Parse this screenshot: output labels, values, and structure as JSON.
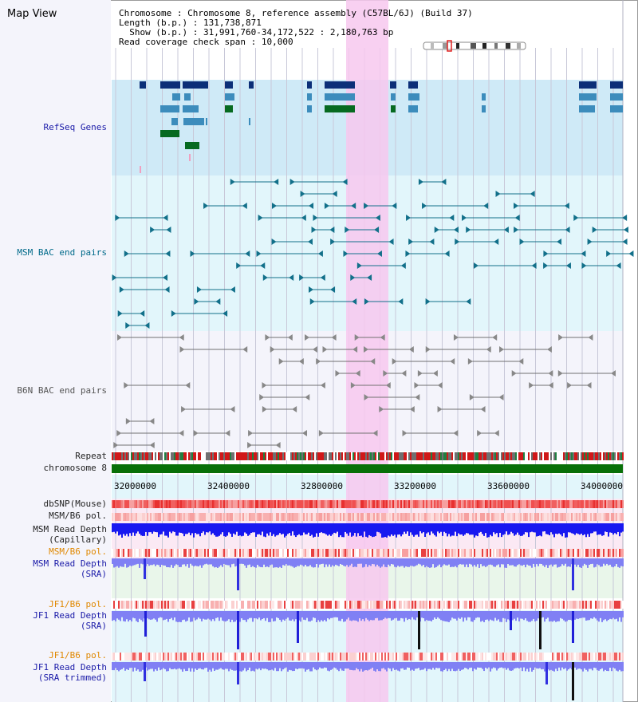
{
  "title": "Map View",
  "info": {
    "chromosome_label": "Chromosome",
    "chromosome_value": "Chromosome 8, reference assembly (C57BL/6J) (Build 37)",
    "length_label": "Length (b.p.)",
    "length_value": "131,738,871",
    "show_label": "Show (b.p.)",
    "show_value": "31,991,760-34,172,522 : 2,180,763 bp",
    "coverage_label": "Read coverage check span",
    "coverage_value": "10,000"
  },
  "tracks": {
    "refseq": "RefSeq Genes",
    "msm_bac": "MSM BAC end pairs",
    "b6n_bac": "B6N BAC end pairs",
    "repeat": "Repeat",
    "chromosome": "chromosome 8",
    "dbsnp": "dbSNP(Mouse)",
    "msm_b6_pol_1": "MSM/B6 pol.",
    "msm_read_depth_cap_1": "MSM Read Depth",
    "msm_read_depth_cap_2": "(Capillary)",
    "msm_b6_pol_2": "MSM/B6 pol.",
    "msm_read_depth_sra_1": "MSM Read Depth",
    "msm_read_depth_sra_2": "(SRA)",
    "jf1_b6_pol_1": "JF1/B6 pol.",
    "jf1_read_depth_sra_1": "JF1 Read Depth",
    "jf1_read_depth_sra_2": "(SRA)",
    "jf1_b6_pol_2": "JF1/B6 pol.",
    "jf1_read_depth_trim_1": "JF1 Read Depth",
    "jf1_read_depth_trim_2": "(SRA trimmed)"
  },
  "axis": {
    "ticks": [
      "32000000",
      "32400000",
      "32800000",
      "33200000",
      "33600000",
      "34000000"
    ]
  },
  "colors": {
    "highlight": "#f7c8ee",
    "refseq_bg": "#cfeaf7",
    "msm_bg": "#e2f6fb",
    "b6n_bg": "#f4f4fb",
    "gene_dark": "#0c2f78",
    "gene_mid": "#3c8cbc",
    "gene_green": "#066a20",
    "msm_line": "#12708a",
    "b6n_line": "#707070",
    "chromosome_bar": "#087008",
    "snp_red": "#e83838",
    "depth_blue": "#1818f0",
    "depth_light": "#8080f4"
  }
}
